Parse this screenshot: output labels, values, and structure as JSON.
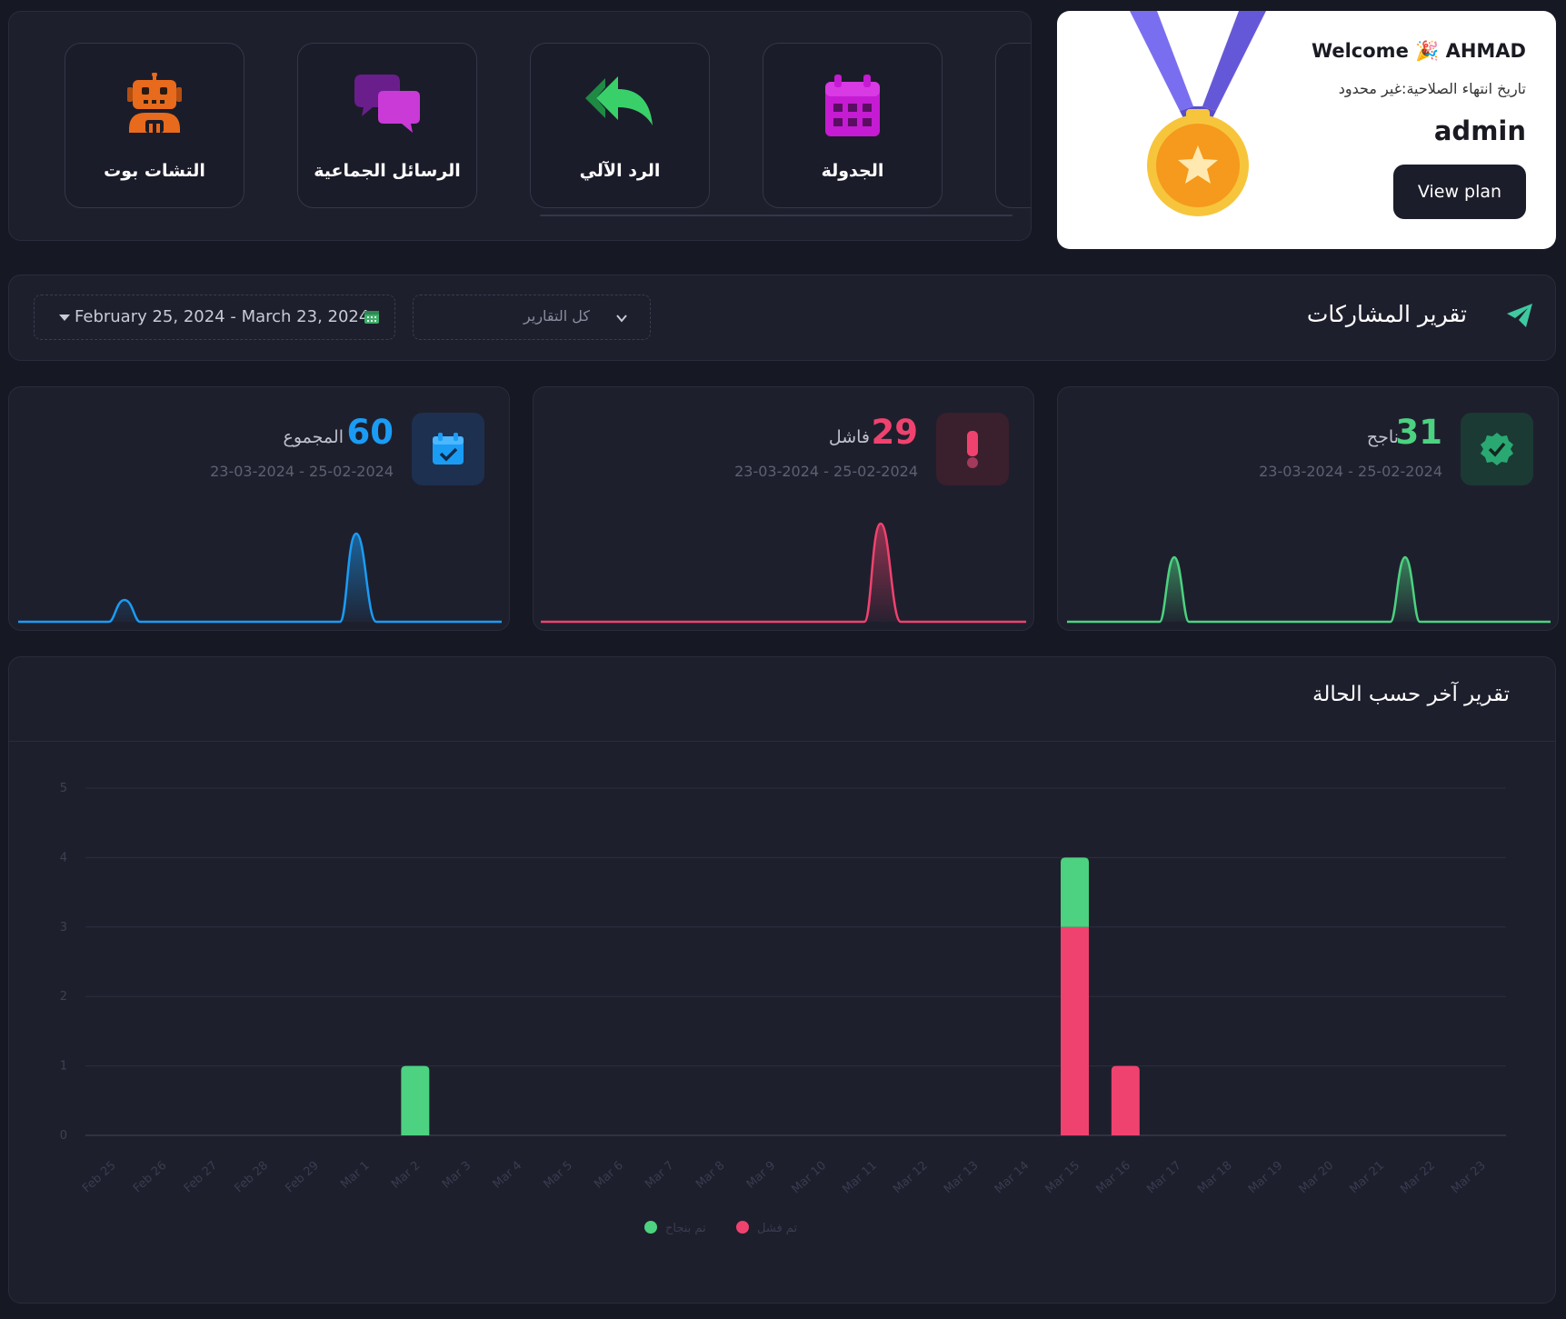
{
  "features": {
    "items": [
      {
        "label": "التشات بوت",
        "icon": "robot-icon"
      },
      {
        "label": "الرسائل الجماعية",
        "icon": "chat-bubbles-icon"
      },
      {
        "label": "الرد الآلي",
        "icon": "reply-all-icon"
      },
      {
        "label": "الجدولة",
        "icon": "calendar-icon"
      }
    ]
  },
  "welcome": {
    "greeting": "Welcome 🎉 AHMAD",
    "expiry": "تاريخ انتهاء الصلاحية:غير محدود",
    "role": "admin",
    "button_label": "View plan",
    "icon": "medal-icon"
  },
  "report": {
    "title": "تقرير المشاركات",
    "icon": "paper-plane-icon",
    "filter_value": "كل التقارير",
    "date_range": "February 25, 2024 - March 23, 2024"
  },
  "stats": {
    "success": {
      "value": "31",
      "label": "ناجح",
      "range": "23-03-2024 - 25-02-2024",
      "color": "#4cd280",
      "icon": "verified-badge-icon"
    },
    "failed": {
      "value": "29",
      "label": "فاشل",
      "range": "23-03-2024 - 25-02-2024",
      "color": "#f0426e",
      "icon": "exclamation-icon"
    },
    "total": {
      "value": "60",
      "label": "المجموع",
      "range": "23-03-2024 - 25-02-2024",
      "color": "#1a9cf5",
      "icon": "calendar-check-icon"
    }
  },
  "status_report": {
    "title": "تقرير آخر حسب الحالة"
  },
  "chart_data": {
    "type": "bar",
    "stacked": true,
    "categories": [
      "Feb 25",
      "Feb 26",
      "Feb 27",
      "Feb 28",
      "Feb 29",
      "Mar 1",
      "Mar 2",
      "Mar 3",
      "Mar 4",
      "Mar 5",
      "Mar 6",
      "Mar 7",
      "Mar 8",
      "Mar 9",
      "Mar 10",
      "Mar 11",
      "Mar 12",
      "Mar 13",
      "Mar 14",
      "Mar 15",
      "Mar 16",
      "Mar 17",
      "Mar 18",
      "Mar 19",
      "Mar 20",
      "Mar 21",
      "Mar 22",
      "Mar 23"
    ],
    "series": [
      {
        "name": "تم بنجاح",
        "color": "#4cd280",
        "values": [
          0,
          0,
          0,
          0,
          0,
          0,
          1,
          0,
          0,
          0,
          0,
          0,
          0,
          0,
          0,
          0,
          0,
          0,
          0,
          1,
          0,
          0,
          0,
          0,
          0,
          0,
          0,
          0
        ]
      },
      {
        "name": "تم فشل",
        "color": "#f0426e",
        "values": [
          0,
          0,
          0,
          0,
          0,
          0,
          0,
          0,
          0,
          0,
          0,
          0,
          0,
          0,
          0,
          0,
          0,
          0,
          0,
          3,
          1,
          0,
          0,
          0,
          0,
          0,
          0,
          0
        ]
      }
    ],
    "yticks": [
      "0",
      "1",
      "2",
      "3",
      "4",
      "5"
    ],
    "ylim": [
      0,
      5
    ],
    "grid": true,
    "legend": "bottom"
  }
}
